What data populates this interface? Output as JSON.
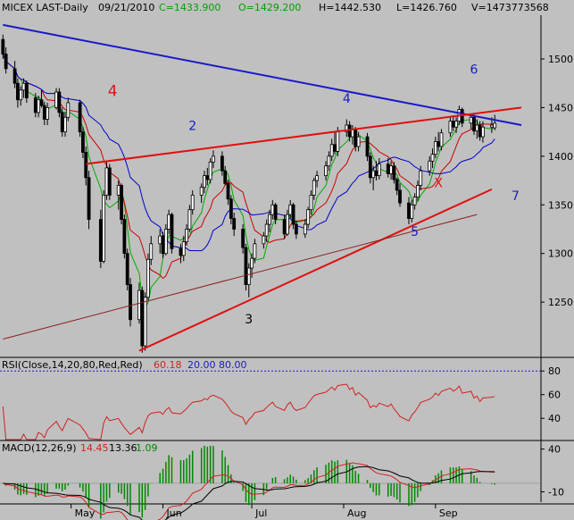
{
  "header": {
    "symbol_period": "MICEX LAST-Daily",
    "date": "09/21/2010",
    "close": "C=1433.900",
    "open": "O=1429.200",
    "high": "H=1442.530",
    "low": "L=1426.760",
    "volume": "V=1473773568"
  },
  "colors": {
    "background": "#c0c0c0",
    "candle": "#000000",
    "ma_short": "#00aa00",
    "ma_mid": "#cc0000",
    "ma_long": "#0000cc",
    "blue_trendline": "#1a1ac8",
    "red_trendline": "#e01010",
    "brown_trendline": "#8b2020",
    "rsi_line": "#d02020",
    "macd_line": "#000000",
    "signal_line": "#d02020",
    "histogram": "#008800"
  },
  "annotations": [
    {
      "label": "4",
      "color": "#e01010",
      "x": "2010-05-15",
      "y": 1462
    },
    {
      "label": "2",
      "color": "#1a1ac8",
      "x": "2010-06-11",
      "y": 1427
    },
    {
      "label": "4",
      "color": "#1a1ac8",
      "x": "2010-08-02",
      "y": 1455
    },
    {
      "label": "6",
      "color": "#1a1ac8",
      "x": "2010-09-14",
      "y": 1485
    },
    {
      "label": "3",
      "color": "#000000",
      "x": "2010-06-30",
      "y": 1228
    },
    {
      "label": "5",
      "color": "#1a1ac8",
      "x": "2010-08-25",
      "y": 1318
    },
    {
      "label": "7",
      "color": "#1a1ac8",
      "x": "2010-09-28",
      "y": 1355
    },
    {
      "label": "X",
      "color": "#e01010",
      "x": "2010-09-02",
      "y": 1368
    }
  ],
  "chart_data": [
    {
      "type": "candlestick",
      "title": "MICEX LAST-Daily",
      "xlabel": "",
      "ylabel": "",
      "x_ticks": [
        "May",
        "Jun",
        "Jul",
        "Aug",
        "Sep"
      ],
      "y_ticks": [
        1250,
        1300,
        1350,
        1400,
        1450,
        1500
      ],
      "ylim": [
        1195,
        1545
      ],
      "grid": false,
      "trendlines": [
        {
          "name": "blue",
          "from": [
            "2010-04-08",
            1535
          ],
          "to": [
            "2010-09-30",
            1432
          ]
        },
        {
          "name": "red_upper",
          "from": [
            "2010-05-06",
            1392
          ],
          "to": [
            "2010-09-30",
            1450
          ]
        },
        {
          "name": "red_lower",
          "from": [
            "2010-05-24",
            1200
          ],
          "to": [
            "2010-09-20",
            1366
          ]
        },
        {
          "name": "brown",
          "from": [
            "2010-04-08",
            1212
          ],
          "to": [
            "2010-09-15",
            1340
          ]
        }
      ],
      "ohlc": [
        [
          "2010-04-08",
          1520,
          1525,
          1500,
          1505
        ],
        [
          "2010-04-09",
          1505,
          1512,
          1485,
          1490
        ],
        [
          "2010-04-12",
          1490,
          1498,
          1470,
          1475
        ],
        [
          "2010-04-13",
          1475,
          1480,
          1450,
          1458
        ],
        [
          "2010-04-14",
          1458,
          1472,
          1452,
          1468
        ],
        [
          "2010-04-15",
          1468,
          1480,
          1460,
          1475
        ],
        [
          "2010-04-16",
          1475,
          1478,
          1455,
          1460
        ],
        [
          "2010-04-19",
          1460,
          1465,
          1440,
          1445
        ],
        [
          "2010-04-20",
          1445,
          1462,
          1440,
          1458
        ],
        [
          "2010-04-21",
          1458,
          1468,
          1450,
          1452
        ],
        [
          "2010-04-22",
          1452,
          1456,
          1432,
          1438
        ],
        [
          "2010-04-23",
          1438,
          1455,
          1432,
          1450
        ],
        [
          "2010-04-26",
          1450,
          1470,
          1448,
          1466
        ],
        [
          "2010-04-27",
          1466,
          1470,
          1440,
          1445
        ],
        [
          "2010-04-28",
          1445,
          1450,
          1420,
          1425
        ],
        [
          "2010-04-29",
          1425,
          1445,
          1420,
          1440
        ],
        [
          "2010-04-30",
          1440,
          1460,
          1436,
          1455
        ],
        [
          "2010-05-04",
          1455,
          1458,
          1420,
          1425
        ],
        [
          "2010-05-05",
          1425,
          1430,
          1398,
          1404
        ],
        [
          "2010-05-06",
          1404,
          1410,
          1370,
          1378
        ],
        [
          "2010-05-07",
          1378,
          1385,
          1325,
          1335
        ],
        [
          "2010-05-11",
          1335,
          1345,
          1285,
          1292
        ],
        [
          "2010-05-12",
          1292,
          1365,
          1290,
          1360
        ],
        [
          "2010-05-13",
          1360,
          1395,
          1355,
          1388
        ],
        [
          "2010-05-14",
          1388,
          1392,
          1355,
          1360
        ],
        [
          "2010-05-17",
          1360,
          1375,
          1345,
          1370
        ],
        [
          "2010-05-18",
          1370,
          1372,
          1330,
          1335
        ],
        [
          "2010-05-19",
          1335,
          1340,
          1295,
          1300
        ],
        [
          "2010-05-20",
          1300,
          1305,
          1262,
          1268
        ],
        [
          "2010-05-21",
          1268,
          1275,
          1225,
          1232
        ],
        [
          "2010-05-24",
          1232,
          1270,
          1228,
          1262
        ],
        [
          "2010-05-25",
          1262,
          1266,
          1198,
          1205
        ],
        [
          "2010-05-26",
          1205,
          1260,
          1200,
          1255
        ],
        [
          "2010-05-27",
          1255,
          1300,
          1252,
          1294
        ],
        [
          "2010-05-28",
          1294,
          1318,
          1288,
          1310
        ],
        [
          "2010-05-31",
          1310,
          1325,
          1300,
          1318
        ],
        [
          "2010-06-01",
          1318,
          1322,
          1295,
          1300
        ],
        [
          "2010-06-02",
          1300,
          1330,
          1298,
          1325
        ],
        [
          "2010-06-03",
          1325,
          1345,
          1320,
          1340
        ],
        [
          "2010-06-04",
          1340,
          1342,
          1300,
          1305
        ],
        [
          "2010-06-07",
          1305,
          1310,
          1290,
          1298
        ],
        [
          "2010-06-08",
          1298,
          1318,
          1292,
          1312
        ],
        [
          "2010-06-09",
          1312,
          1330,
          1308,
          1325
        ],
        [
          "2010-06-10",
          1325,
          1350,
          1322,
          1345
        ],
        [
          "2010-06-11",
          1345,
          1365,
          1340,
          1360
        ],
        [
          "2010-06-14",
          1360,
          1372,
          1352,
          1368
        ],
        [
          "2010-06-15",
          1368,
          1385,
          1362,
          1380
        ],
        [
          "2010-06-16",
          1380,
          1388,
          1370,
          1376
        ],
        [
          "2010-06-17",
          1376,
          1398,
          1372,
          1394
        ],
        [
          "2010-06-18",
          1394,
          1406,
          1388,
          1400
        ],
        [
          "2010-06-21",
          1400,
          1405,
          1380,
          1385
        ],
        [
          "2010-06-22",
          1385,
          1390,
          1370,
          1372
        ],
        [
          "2010-06-23",
          1372,
          1376,
          1350,
          1356
        ],
        [
          "2010-06-24",
          1356,
          1360,
          1330,
          1336
        ],
        [
          "2010-06-25",
          1336,
          1342,
          1318,
          1325
        ],
        [
          "2010-06-28",
          1325,
          1330,
          1300,
          1306
        ],
        [
          "2010-06-29",
          1306,
          1310,
          1262,
          1268
        ],
        [
          "2010-06-30",
          1268,
          1290,
          1255,
          1285
        ],
        [
          "2010-07-01",
          1285,
          1300,
          1275,
          1295
        ],
        [
          "2010-07-02",
          1295,
          1315,
          1290,
          1310
        ],
        [
          "2010-07-05",
          1310,
          1322,
          1305,
          1318
        ],
        [
          "2010-07-06",
          1318,
          1335,
          1312,
          1330
        ],
        [
          "2010-07-07",
          1330,
          1345,
          1322,
          1340
        ],
        [
          "2010-07-08",
          1340,
          1355,
          1335,
          1350
        ],
        [
          "2010-07-09",
          1350,
          1352,
          1330,
          1335
        ],
        [
          "2010-07-12",
          1335,
          1340,
          1315,
          1320
        ],
        [
          "2010-07-13",
          1320,
          1345,
          1318,
          1340
        ],
        [
          "2010-07-14",
          1340,
          1355,
          1336,
          1350
        ],
        [
          "2010-07-15",
          1350,
          1352,
          1325,
          1330
        ],
        [
          "2010-07-16",
          1330,
          1334,
          1315,
          1320
        ],
        [
          "2010-07-19",
          1320,
          1335,
          1316,
          1330
        ],
        [
          "2010-07-20",
          1330,
          1348,
          1326,
          1345
        ],
        [
          "2010-07-21",
          1345,
          1365,
          1340,
          1360
        ],
        [
          "2010-07-22",
          1360,
          1378,
          1355,
          1375
        ],
        [
          "2010-07-23",
          1375,
          1385,
          1368,
          1380
        ],
        [
          "2010-07-26",
          1380,
          1395,
          1375,
          1390
        ],
        [
          "2010-07-27",
          1390,
          1405,
          1385,
          1400
        ],
        [
          "2010-07-28",
          1400,
          1418,
          1395,
          1412
        ],
        [
          "2010-07-29",
          1412,
          1425,
          1402,
          1405
        ],
        [
          "2010-07-30",
          1405,
          1430,
          1400,
          1425
        ],
        [
          "2010-08-02",
          1425,
          1438,
          1420,
          1432
        ],
        [
          "2010-08-03",
          1432,
          1436,
          1415,
          1420
        ],
        [
          "2010-08-04",
          1420,
          1432,
          1412,
          1428
        ],
        [
          "2010-08-05",
          1428,
          1430,
          1405,
          1410
        ],
        [
          "2010-08-06",
          1410,
          1425,
          1405,
          1420
        ],
        [
          "2010-08-09",
          1420,
          1424,
          1395,
          1400
        ],
        [
          "2010-08-10",
          1400,
          1404,
          1372,
          1378
        ],
        [
          "2010-08-11",
          1378,
          1390,
          1365,
          1385
        ],
        [
          "2010-08-12",
          1385,
          1395,
          1375,
          1380
        ],
        [
          "2010-08-13",
          1380,
          1398,
          1376,
          1392
        ],
        [
          "2010-08-16",
          1392,
          1398,
          1378,
          1382
        ],
        [
          "2010-08-17",
          1382,
          1395,
          1376,
          1390
        ],
        [
          "2010-08-18",
          1390,
          1394,
          1372,
          1376
        ],
        [
          "2010-08-19",
          1376,
          1378,
          1360,
          1365
        ],
        [
          "2010-08-20",
          1365,
          1372,
          1348,
          1352
        ],
        [
          "2010-08-23",
          1352,
          1358,
          1330,
          1336
        ],
        [
          "2010-08-24",
          1336,
          1355,
          1332,
          1350
        ],
        [
          "2010-08-25",
          1350,
          1362,
          1345,
          1358
        ],
        [
          "2010-08-26",
          1358,
          1375,
          1354,
          1370
        ],
        [
          "2010-08-27",
          1370,
          1390,
          1365,
          1385
        ],
        [
          "2010-08-30",
          1385,
          1400,
          1380,
          1395
        ],
        [
          "2010-08-31",
          1395,
          1408,
          1388,
          1402
        ],
        [
          "2010-09-01",
          1402,
          1420,
          1398,
          1415
        ],
        [
          "2010-09-02",
          1415,
          1425,
          1405,
          1410
        ],
        [
          "2010-09-03",
          1410,
          1428,
          1406,
          1424
        ],
        [
          "2010-09-06",
          1424,
          1440,
          1420,
          1436
        ],
        [
          "2010-09-07",
          1436,
          1442,
          1426,
          1430
        ],
        [
          "2010-09-08",
          1430,
          1440,
          1424,
          1436
        ],
        [
          "2010-09-09",
          1436,
          1452,
          1432,
          1448
        ],
        [
          "2010-09-10",
          1448,
          1450,
          1430,
          1434
        ],
        [
          "2010-09-13",
          1434,
          1444,
          1428,
          1440
        ],
        [
          "2010-09-14",
          1440,
          1444,
          1422,
          1426
        ],
        [
          "2010-09-15",
          1426,
          1438,
          1418,
          1432
        ],
        [
          "2010-09-16",
          1432,
          1436,
          1416,
          1420
        ],
        [
          "2010-09-17",
          1420,
          1436,
          1414,
          1430
        ],
        [
          "2010-09-20",
          1430,
          1440,
          1424,
          1432
        ],
        [
          "2010-09-21",
          1429.2,
          1442.53,
          1426.76,
          1433.9
        ]
      ]
    },
    {
      "type": "line",
      "title": "RSI(Close,14,20,80,Red,Red)",
      "last_value": "60.18",
      "levels": [
        "20.00",
        "80.00"
      ],
      "y_ticks": [
        40,
        60,
        80
      ],
      "ylim": [
        22,
        90
      ]
    },
    {
      "type": "line",
      "title": "MACD(12,26,9)",
      "values_text": [
        "14.45",
        "13.36",
        "1.09"
      ],
      "y_ticks": [
        -10,
        40
      ],
      "ylim": [
        -22,
        48
      ]
    }
  ]
}
